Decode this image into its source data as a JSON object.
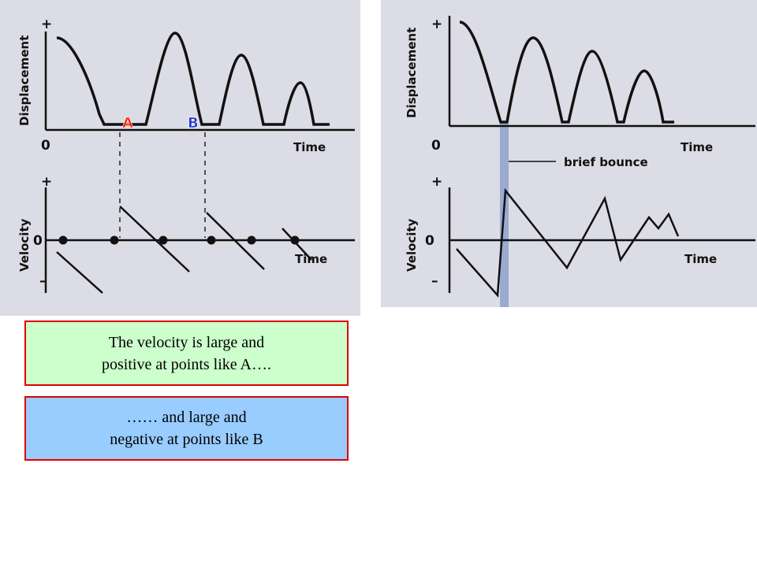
{
  "left_diagram": {
    "displacement_axis": {
      "title": "Displacement",
      "plus": "+",
      "origin": "0",
      "time_label": "Time"
    },
    "velocity_axis": {
      "title": "Velocity",
      "plus": "+",
      "zero": "0",
      "minus": "–",
      "time_label": "Time"
    },
    "point_a": {
      "label": "A",
      "color": "#ff2200"
    },
    "point_b": {
      "label": "B",
      "color": "#2233cc"
    }
  },
  "right_diagram": {
    "displacement_axis": {
      "title": "Displacement",
      "plus": "+",
      "origin": "0",
      "time_label": "Time"
    },
    "velocity_axis": {
      "title": "Velocity",
      "plus": "+",
      "zero": "0",
      "minus": "–",
      "time_label": "Time"
    },
    "annotation": "brief bounce",
    "highlight_color": "#9aaad0"
  },
  "captions": {
    "caption_a": {
      "line1": "The velocity is large and",
      "line2": "positive at points like  A…."
    },
    "caption_b": {
      "line1": "……   and   large  and",
      "line2": "negative at points like B"
    }
  }
}
